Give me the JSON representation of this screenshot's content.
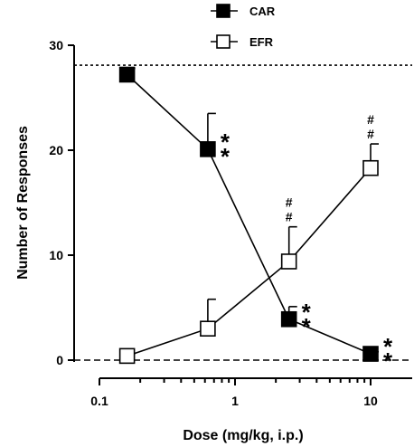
{
  "chart_data": {
    "type": "line",
    "title": "",
    "xlabel": "Dose (mg/kg, i.p.)",
    "ylabel": "Number of Responses",
    "x_scale": "log",
    "xlim": [
      0.1,
      16
    ],
    "ylim": [
      0,
      30
    ],
    "x_ticks": [
      0.1,
      1,
      10
    ],
    "x_tick_labels": [
      "0.1",
      "1",
      "10"
    ],
    "y_ticks": [
      0,
      10,
      20,
      30
    ],
    "y_tick_labels": [
      "0",
      "10",
      "20",
      "30"
    ],
    "grid": false,
    "legend_position": "top-center",
    "x": [
      0.16,
      0.63,
      2.5,
      10
    ],
    "series": [
      {
        "name": "CAR",
        "marker": "filled-square",
        "values": [
          27.2,
          20.1,
          3.9,
          0.6
        ],
        "error": [
          0.6,
          3.4,
          1.2,
          0.2
        ],
        "annotations": [
          "",
          "**",
          "**",
          "**"
        ]
      },
      {
        "name": "EFR",
        "marker": "open-square",
        "values": [
          0.4,
          3.0,
          9.4,
          18.3
        ],
        "error": [
          0.2,
          2.8,
          3.3,
          2.3
        ],
        "annotations": [
          "",
          "",
          "##",
          "##"
        ]
      }
    ],
    "reference_lines": [
      {
        "y": 28.1,
        "style": "dotted"
      },
      {
        "y": 0,
        "style": "dashed"
      }
    ]
  }
}
